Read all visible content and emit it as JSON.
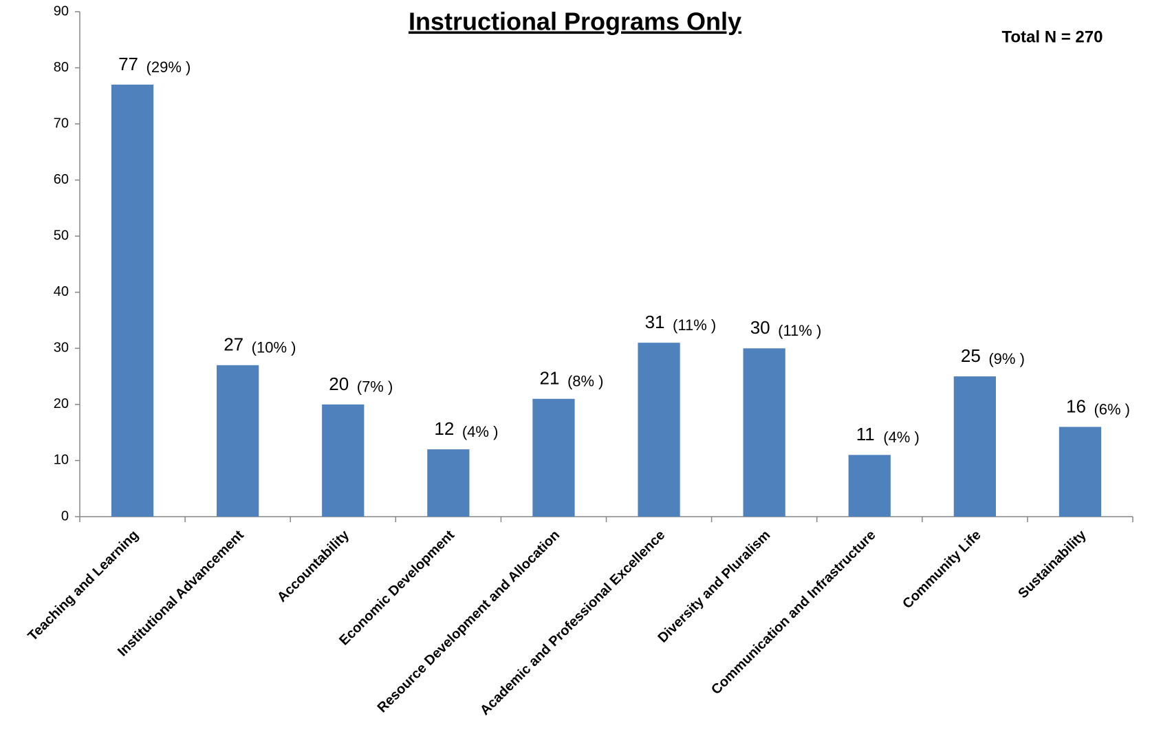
{
  "chart_data": {
    "type": "bar",
    "title": "Instructional Programs Only",
    "annotation": "Total N = 270",
    "categories": [
      "Teaching and Learning",
      "Institutional Advancement",
      "Accountability",
      "Economic Development",
      "Resource Development and Allocation",
      "Academic and Professional Excellence",
      "Diversity and Pluralism",
      "Communication and Infrastructure",
      "Community Life",
      "Sustainability"
    ],
    "values": [
      77,
      27,
      20,
      12,
      21,
      31,
      30,
      11,
      25,
      16
    ],
    "percent_labels": [
      "(29% )",
      "(10% )",
      "(7% )",
      "(4% )",
      "(8% )",
      "(11% )",
      "(11% )",
      "(4% )",
      "(9% )",
      "(6% )"
    ],
    "color": "#4f81bd",
    "ylim": [
      0,
      90
    ],
    "yticks": [
      0,
      10,
      20,
      30,
      40,
      50,
      60,
      70,
      80,
      90
    ],
    "grid": false
  }
}
